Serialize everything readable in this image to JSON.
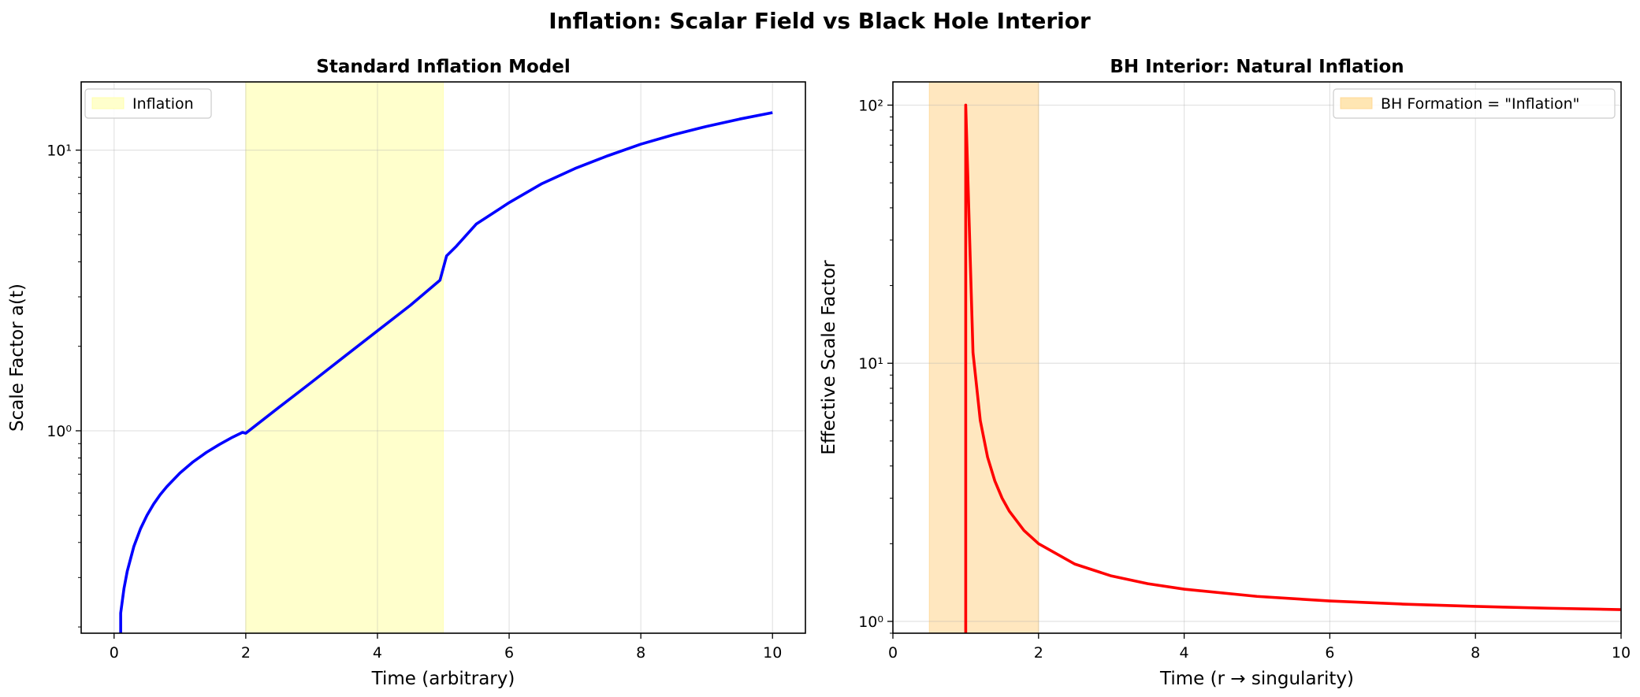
{
  "figure": {
    "title": "Inflation: Scalar Field vs Black Hole Interior"
  },
  "chart_data": [
    {
      "type": "line",
      "title": "Standard Inflation Model",
      "xlabel": "Time (arbitrary)",
      "ylabel": "Scale Factor a(t)",
      "xlim": [
        -0.5,
        10.5
      ],
      "ylim": [
        0.19,
        17.5
      ],
      "yscale": "log",
      "grid": true,
      "xticks": [
        0,
        2,
        4,
        6,
        8,
        10
      ],
      "xtick_labels": [
        "0",
        "2",
        "4",
        "6",
        "8",
        "10"
      ],
      "yticks_major": [
        1,
        10
      ],
      "ytick_labels": [
        "10⁰",
        "10¹"
      ],
      "legend_position": "upper left",
      "legend": [
        {
          "label": "Inflation",
          "kind": "shaded-span",
          "color": "#ffffcc"
        }
      ],
      "span": {
        "x0": 2,
        "x1": 5,
        "color": "#ffff99",
        "label": "Inflation"
      },
      "series": [
        {
          "color": "#0000ff",
          "x": [
            0.1,
            0.1,
            0.15,
            0.2,
            0.3,
            0.4,
            0.5,
            0.6,
            0.7,
            0.8,
            1.0,
            1.2,
            1.4,
            1.6,
            1.8,
            1.95,
            2.0,
            2.5,
            3.0,
            3.5,
            4.0,
            4.5,
            4.95,
            5.05,
            5.2,
            5.5,
            6.0,
            6.5,
            7.0,
            7.5,
            8.0,
            8.5,
            9.0,
            9.5,
            10.0
          ],
          "y": [
            0.19,
            0.224,
            0.274,
            0.316,
            0.387,
            0.447,
            0.5,
            0.548,
            0.592,
            0.632,
            0.707,
            0.775,
            0.837,
            0.894,
            0.949,
            0.987,
            0.98,
            1.21,
            1.49,
            1.84,
            2.27,
            2.8,
            3.44,
            4.2,
            4.55,
            5.45,
            6.5,
            7.6,
            8.6,
            9.55,
            10.5,
            11.35,
            12.15,
            12.9,
            13.6
          ]
        }
      ]
    },
    {
      "type": "line",
      "title": "BH Interior: Natural Inflation",
      "xlabel": "Time (r → singularity)",
      "ylabel": "Effective Scale Factor",
      "xlim": [
        0,
        10
      ],
      "ylim": [
        0.9,
        123
      ],
      "yscale": "log",
      "grid": true,
      "xticks": [
        0,
        2,
        4,
        6,
        8,
        10
      ],
      "xtick_labels": [
        "0",
        "2",
        "4",
        "6",
        "8",
        "10"
      ],
      "yticks_major": [
        1,
        10,
        100
      ],
      "ytick_labels": [
        "10⁰",
        "10¹",
        "10²"
      ],
      "legend_position": "upper right",
      "legend": [
        {
          "label": "BH Formation = \"Inflation\"",
          "kind": "shaded-span",
          "color": "#ffe6b3"
        }
      ],
      "span": {
        "x0": 0.5,
        "x1": 2,
        "color": "#ffd080",
        "label": "BH Formation = \"Inflation\""
      },
      "series": [
        {
          "color": "#ff0000",
          "x": [
            1.0,
            1.0,
            1.1,
            1.2,
            1.3,
            1.4,
            1.5,
            1.6,
            1.8,
            2.0,
            2.5,
            3.0,
            3.5,
            4.0,
            5.0,
            6.0,
            7.0,
            8.0,
            9.0,
            10.0
          ],
          "y": [
            0.9,
            100,
            11,
            6,
            4.33,
            3.5,
            3.0,
            2.67,
            2.25,
            2.0,
            1.667,
            1.5,
            1.4,
            1.333,
            1.25,
            1.2,
            1.167,
            1.143,
            1.125,
            1.111
          ]
        }
      ]
    }
  ]
}
